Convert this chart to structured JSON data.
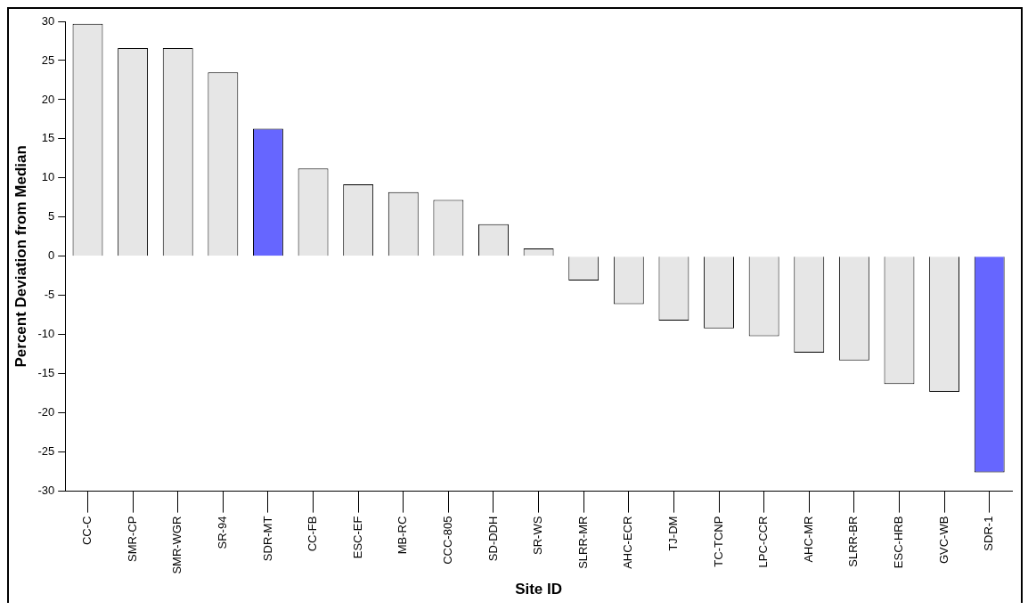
{
  "chart_data": {
    "type": "bar",
    "xlabel": "Site ID",
    "ylabel": "Percent Deviation from Median",
    "categories": [
      "CC-C",
      "SMR-CP",
      "SMR-WGR",
      "SR-94",
      "SDR-MT",
      "CC-FB",
      "ESC-EF",
      "MB-RC",
      "CCC-805",
      "SD-DDH",
      "SR-WS",
      "SLRR-MR",
      "AHC-ECR",
      "TJ-DM",
      "TC-TCNP",
      "LPC-CCR",
      "AHC-MR",
      "SLRR-BR",
      "ESC-HRB",
      "GVC-WB",
      "SDR-1"
    ],
    "values": [
      29.7,
      26.6,
      26.6,
      23.5,
      16.3,
      11.2,
      9.2,
      8.2,
      7.2,
      4.1,
      1.0,
      -3.1,
      -6.1,
      -8.2,
      -9.2,
      -10.2,
      -12.3,
      -13.3,
      -16.3,
      -17.3,
      -27.6
    ],
    "colors": [
      "#e6e6e6",
      "#e6e6e6",
      "#e6e6e6",
      "#e6e6e6",
      "#6666ff",
      "#e6e6e6",
      "#e6e6e6",
      "#e6e6e6",
      "#e6e6e6",
      "#e6e6e6",
      "#e6e6e6",
      "#e6e6e6",
      "#e6e6e6",
      "#e6e6e6",
      "#e6e6e6",
      "#e6e6e6",
      "#e6e6e6",
      "#e6e6e6",
      "#e6e6e6",
      "#e6e6e6",
      "#6666ff"
    ],
    "ylim": [
      -30,
      30
    ],
    "yticks": [
      -30,
      -25,
      -20,
      -15,
      -10,
      -5,
      0,
      5,
      10,
      15,
      20,
      25,
      30
    ],
    "grid": false,
    "legend": false
  }
}
